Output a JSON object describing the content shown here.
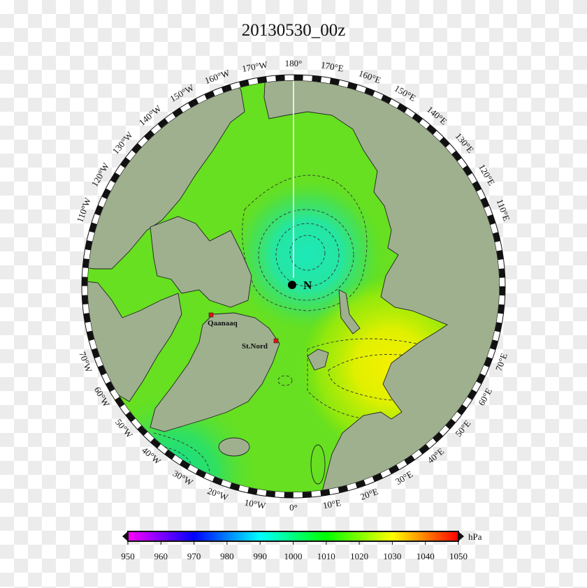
{
  "title": "20130530_00z",
  "map": {
    "projection": "north polar stereographic",
    "land_color": "#9fb08f",
    "pole_marker_label": "N",
    "cities": [
      {
        "name": "Qaanaaq",
        "lat": 77.5,
        "lon": -69.2
      },
      {
        "name": "St.Nord",
        "lat": 81.6,
        "lon": -16.7
      }
    ],
    "longitude_labels": [
      {
        "lon": 180,
        "text": "180°"
      },
      {
        "lon": 170,
        "text": "170°E"
      },
      {
        "lon": 160,
        "text": "160°E"
      },
      {
        "lon": 150,
        "text": "150°E"
      },
      {
        "lon": 140,
        "text": "140°E"
      },
      {
        "lon": 130,
        "text": "130°E"
      },
      {
        "lon": 120,
        "text": "120°E"
      },
      {
        "lon": 110,
        "text": "110°E"
      },
      {
        "lon": 70,
        "text": "70°E"
      },
      {
        "lon": 60,
        "text": "60°E"
      },
      {
        "lon": 50,
        "text": "50°E"
      },
      {
        "lon": 40,
        "text": "40°E"
      },
      {
        "lon": 30,
        "text": "30°E"
      },
      {
        "lon": 20,
        "text": "20°E"
      },
      {
        "lon": 10,
        "text": "10°E"
      },
      {
        "lon": 0,
        "text": "0°"
      },
      {
        "lon": -10,
        "text": "10°W"
      },
      {
        "lon": -20,
        "text": "20°W"
      },
      {
        "lon": -30,
        "text": "30°W"
      },
      {
        "lon": -40,
        "text": "40°W"
      },
      {
        "lon": -50,
        "text": "50°W"
      },
      {
        "lon": -60,
        "text": "60°W"
      },
      {
        "lon": -70,
        "text": "70°W"
      },
      {
        "lon": -110,
        "text": "110°W"
      },
      {
        "lon": -120,
        "text": "120°W"
      },
      {
        "lon": -130,
        "text": "130°W"
      },
      {
        "lon": -140,
        "text": "140°W"
      },
      {
        "lon": -150,
        "text": "150°W"
      },
      {
        "lon": -160,
        "text": "160°W"
      },
      {
        "lon": -170,
        "text": "170°W"
      }
    ]
  },
  "colorbar": {
    "unit": "hPa",
    "min": 950,
    "max": 1050,
    "ticks": [
      "950",
      "960",
      "970",
      "980",
      "990",
      "1000",
      "1010",
      "1020",
      "1030",
      "1040",
      "1050"
    ],
    "colors": [
      "#ff00ff",
      "#0000ff",
      "#00ffff",
      "#00ff00",
      "#ffff00",
      "#ff0000"
    ]
  }
}
